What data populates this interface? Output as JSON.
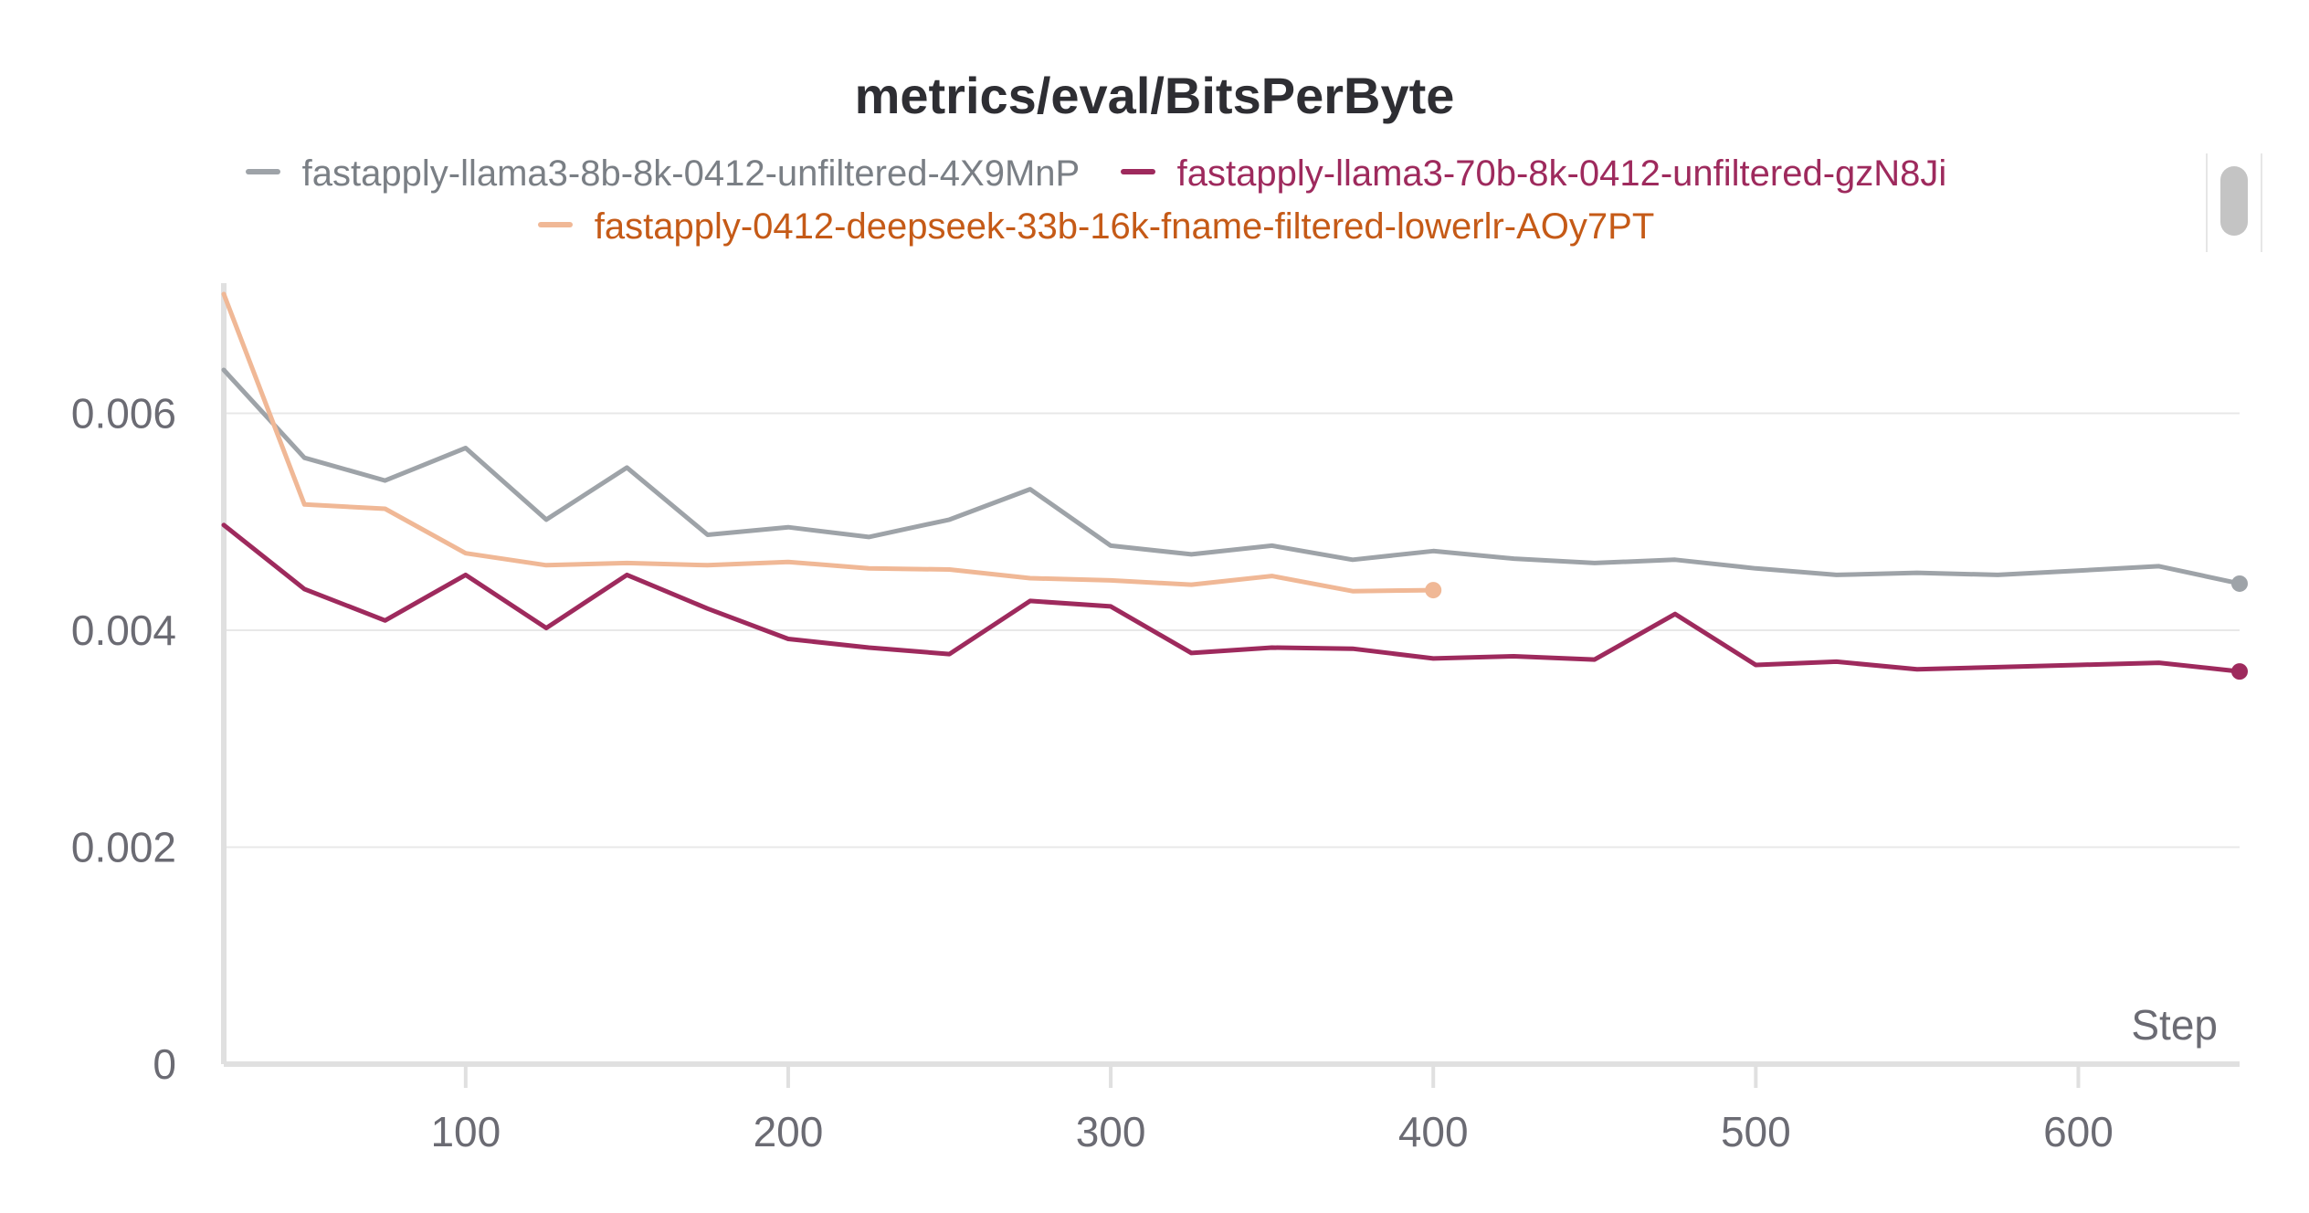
{
  "chart_data": {
    "type": "line",
    "title": "metrics/eval/BitsPerByte",
    "xlabel": "Step",
    "ylabel": "",
    "xlim": [
      25,
      650
    ],
    "ylim": [
      0,
      0.0072
    ],
    "x_ticks": [
      100,
      200,
      300,
      400,
      500,
      600
    ],
    "y_ticks": [
      0,
      0.002,
      0.004,
      0.006
    ],
    "y_tick_labels": [
      "0",
      "0.002",
      "0.004",
      "0.006"
    ],
    "grid": true,
    "legend_position": "top",
    "series": [
      {
        "name": "fastapply-llama3-8b-8k-0412-unfiltered-4X9MnP",
        "color": "#9ea3a8",
        "x": [
          25,
          50,
          75,
          100,
          125,
          150,
          175,
          200,
          225,
          250,
          275,
          300,
          325,
          350,
          375,
          400,
          425,
          450,
          475,
          500,
          525,
          550,
          575,
          600,
          625,
          650
        ],
        "y": [
          0.0064,
          0.00559,
          0.00538,
          0.00568,
          0.00502,
          0.0055,
          0.00488,
          0.00495,
          0.00486,
          0.00502,
          0.0053,
          0.00478,
          0.0047,
          0.00478,
          0.00465,
          0.00473,
          0.00466,
          0.00462,
          0.00465,
          0.00457,
          0.00451,
          0.00453,
          0.00451,
          0.00455,
          0.00459,
          0.00443
        ]
      },
      {
        "name": "fastapply-llama3-70b-8k-0412-unfiltered-gzN8Ji",
        "color": "#9e2a5d",
        "x": [
          25,
          50,
          75,
          100,
          125,
          150,
          175,
          200,
          225,
          250,
          275,
          300,
          325,
          350,
          375,
          400,
          425,
          450,
          475,
          500,
          525,
          550,
          575,
          600,
          625,
          650
        ],
        "y": [
          0.00497,
          0.00438,
          0.00409,
          0.00451,
          0.00402,
          0.00451,
          0.0042,
          0.00392,
          0.00384,
          0.00378,
          0.00427,
          0.00422,
          0.00379,
          0.00384,
          0.00383,
          0.00374,
          0.00376,
          0.00373,
          0.00415,
          0.00368,
          0.00371,
          0.00364,
          0.00366,
          0.00368,
          0.0037,
          0.00362
        ]
      },
      {
        "name": "fastapply-0412-deepseek-33b-16k-fname-filtered-lowerlr-AOy7PT",
        "color": "#f0b896",
        "label_color": "#c55a17",
        "x": [
          25,
          50,
          75,
          100,
          125,
          150,
          175,
          200,
          225,
          250,
          275,
          300,
          325,
          350,
          375,
          400
        ],
        "y": [
          0.0071,
          0.00516,
          0.00512,
          0.00471,
          0.0046,
          0.00462,
          0.0046,
          0.00463,
          0.00457,
          0.00456,
          0.00448,
          0.00446,
          0.00442,
          0.0045,
          0.00436,
          0.00437
        ]
      }
    ]
  }
}
